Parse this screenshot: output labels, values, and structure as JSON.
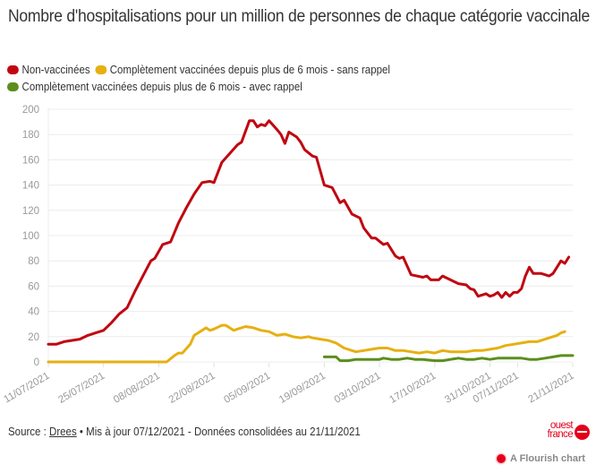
{
  "title": "Nombre d'hospitalisations pour un million de personnes de chaque catégorie vaccinale",
  "legend": [
    {
      "label": "Non-vaccinées",
      "color": "#c00711"
    },
    {
      "label": "Complètement vaccinées depuis plus de 6 mois - sans rappel",
      "color": "#e6b012"
    },
    {
      "label": "Complètement vaccinées depuis plus de 6 mois - avec rappel",
      "color": "#5b8e1c"
    }
  ],
  "footer": {
    "source_prefix": "Source : ",
    "source_link": "Drees",
    "source_suffix": " • Mis à jour 07/12/2021 - Données consolidées au 21/11/2021"
  },
  "branding": {
    "logo_line1": "ouest",
    "logo_line2": "france",
    "flourish_label": "A Flourish chart"
  },
  "chart_data": {
    "type": "line",
    "title": "Nombre d'hospitalisations pour un million de personnes de chaque catégorie vaccinale",
    "xlabel": "",
    "ylabel": "",
    "ylim": [
      0,
      200
    ],
    "yticks": [
      0,
      20,
      40,
      60,
      80,
      100,
      120,
      140,
      160,
      180,
      200
    ],
    "x_start": "2021-07-11",
    "x_end": "2021-11-21",
    "xticks": [
      {
        "date": "2021-07-11",
        "label": "11/07/2021"
      },
      {
        "date": "2021-07-25",
        "label": "25/07/2021"
      },
      {
        "date": "2021-08-08",
        "label": "08/08/2021"
      },
      {
        "date": "2021-08-22",
        "label": "22/08/2021"
      },
      {
        "date": "2021-09-05",
        "label": "05/09/2021"
      },
      {
        "date": "2021-09-19",
        "label": "19/09/2021"
      },
      {
        "date": "2021-10-03",
        "label": "03/10/2021"
      },
      {
        "date": "2021-10-17",
        "label": "17/10/2021"
      },
      {
        "date": "2021-10-31",
        "label": "31/10/2021"
      },
      {
        "date": "2021-11-07",
        "label": "07/11/2021"
      },
      {
        "date": "2021-11-21",
        "label": "21/11/2021"
      }
    ],
    "grid": true,
    "legend_position": "top-left",
    "series": [
      {
        "name": "Non-vaccinées",
        "color": "#c00711",
        "points": [
          [
            "2021-07-11",
            14
          ],
          [
            "2021-07-13",
            14
          ],
          [
            "2021-07-15",
            16
          ],
          [
            "2021-07-17",
            17
          ],
          [
            "2021-07-19",
            18
          ],
          [
            "2021-07-21",
            21
          ],
          [
            "2021-07-23",
            23
          ],
          [
            "2021-07-25",
            25
          ],
          [
            "2021-07-27",
            31
          ],
          [
            "2021-07-29",
            38
          ],
          [
            "2021-07-31",
            43
          ],
          [
            "2021-08-02",
            56
          ],
          [
            "2021-08-04",
            68
          ],
          [
            "2021-08-06",
            80
          ],
          [
            "2021-08-07",
            82
          ],
          [
            "2021-08-09",
            93
          ],
          [
            "2021-08-11",
            95
          ],
          [
            "2021-08-13",
            110
          ],
          [
            "2021-08-15",
            122
          ],
          [
            "2021-08-17",
            133
          ],
          [
            "2021-08-19",
            142
          ],
          [
            "2021-08-21",
            143
          ],
          [
            "2021-08-22",
            142
          ],
          [
            "2021-08-24",
            158
          ],
          [
            "2021-08-26",
            165
          ],
          [
            "2021-08-28",
            172
          ],
          [
            "2021-08-29",
            174
          ],
          [
            "2021-08-31",
            191
          ],
          [
            "2021-09-01",
            191
          ],
          [
            "2021-09-02",
            186
          ],
          [
            "2021-09-03",
            188
          ],
          [
            "2021-09-04",
            187
          ],
          [
            "2021-09-05",
            191
          ],
          [
            "2021-09-07",
            184
          ],
          [
            "2021-09-08",
            180
          ],
          [
            "2021-09-09",
            173
          ],
          [
            "2021-09-10",
            182
          ],
          [
            "2021-09-12",
            178
          ],
          [
            "2021-09-13",
            174
          ],
          [
            "2021-09-14",
            168
          ],
          [
            "2021-09-16",
            163
          ],
          [
            "2021-09-17",
            162
          ],
          [
            "2021-09-19",
            140
          ],
          [
            "2021-09-21",
            138
          ],
          [
            "2021-09-23",
            126
          ],
          [
            "2021-09-24",
            128
          ],
          [
            "2021-09-26",
            117
          ],
          [
            "2021-09-28",
            114
          ],
          [
            "2021-09-29",
            106
          ],
          [
            "2021-10-01",
            98
          ],
          [
            "2021-10-02",
            98
          ],
          [
            "2021-10-04",
            93
          ],
          [
            "2021-10-05",
            94
          ],
          [
            "2021-10-07",
            84
          ],
          [
            "2021-10-08",
            82
          ],
          [
            "2021-10-09",
            83
          ],
          [
            "2021-10-11",
            69
          ],
          [
            "2021-10-14",
            67
          ],
          [
            "2021-10-15",
            68
          ],
          [
            "2021-10-16",
            65
          ],
          [
            "2021-10-18",
            65
          ],
          [
            "2021-10-19",
            68
          ],
          [
            "2021-10-21",
            65
          ],
          [
            "2021-10-23",
            62
          ],
          [
            "2021-10-25",
            61
          ],
          [
            "2021-10-26",
            58
          ],
          [
            "2021-10-27",
            57
          ],
          [
            "2021-10-28",
            52
          ],
          [
            "2021-10-30",
            54
          ],
          [
            "2021-10-31",
            52
          ],
          [
            "2021-11-01",
            53
          ],
          [
            "2021-11-02",
            55
          ],
          [
            "2021-11-03",
            51
          ],
          [
            "2021-11-04",
            55
          ],
          [
            "2021-11-05",
            52
          ],
          [
            "2021-11-06",
            55
          ],
          [
            "2021-11-07",
            55
          ],
          [
            "2021-11-08",
            58
          ],
          [
            "2021-11-09",
            68
          ],
          [
            "2021-11-10",
            75
          ],
          [
            "2021-11-11",
            70
          ],
          [
            "2021-11-13",
            70
          ],
          [
            "2021-11-15",
            68
          ],
          [
            "2021-11-16",
            70
          ],
          [
            "2021-11-17",
            75
          ],
          [
            "2021-11-18",
            80
          ],
          [
            "2021-11-19",
            78
          ],
          [
            "2021-11-20",
            83
          ]
        ]
      },
      {
        "name": "Complètement vaccinées depuis plus de 6 mois - sans rappel",
        "color": "#e6b012",
        "points": [
          [
            "2021-07-11",
            0
          ],
          [
            "2021-07-25",
            0
          ],
          [
            "2021-08-08",
            0
          ],
          [
            "2021-08-10",
            0
          ],
          [
            "2021-08-12",
            5
          ],
          [
            "2021-08-13",
            7
          ],
          [
            "2021-08-14",
            7
          ],
          [
            "2021-08-16",
            14
          ],
          [
            "2021-08-17",
            21
          ],
          [
            "2021-08-19",
            25
          ],
          [
            "2021-08-20",
            27
          ],
          [
            "2021-08-21",
            25
          ],
          [
            "2021-08-22",
            26
          ],
          [
            "2021-08-24",
            29
          ],
          [
            "2021-08-25",
            29
          ],
          [
            "2021-08-27",
            25
          ],
          [
            "2021-08-28",
            26
          ],
          [
            "2021-08-30",
            28
          ],
          [
            "2021-09-01",
            27
          ],
          [
            "2021-09-03",
            25
          ],
          [
            "2021-09-05",
            24
          ],
          [
            "2021-09-07",
            21
          ],
          [
            "2021-09-09",
            22
          ],
          [
            "2021-09-11",
            20
          ],
          [
            "2021-09-13",
            19
          ],
          [
            "2021-09-15",
            20
          ],
          [
            "2021-09-16",
            19
          ],
          [
            "2021-09-18",
            18
          ],
          [
            "2021-09-20",
            17
          ],
          [
            "2021-09-22",
            15
          ],
          [
            "2021-09-24",
            11
          ],
          [
            "2021-09-26",
            9
          ],
          [
            "2021-09-27",
            8
          ],
          [
            "2021-09-29",
            9
          ],
          [
            "2021-10-01",
            10
          ],
          [
            "2021-10-03",
            11
          ],
          [
            "2021-10-05",
            11
          ],
          [
            "2021-10-07",
            9
          ],
          [
            "2021-10-09",
            9
          ],
          [
            "2021-10-11",
            8
          ],
          [
            "2021-10-13",
            7
          ],
          [
            "2021-10-15",
            8
          ],
          [
            "2021-10-17",
            7
          ],
          [
            "2021-10-19",
            9
          ],
          [
            "2021-10-21",
            8
          ],
          [
            "2021-10-23",
            8
          ],
          [
            "2021-10-25",
            8
          ],
          [
            "2021-10-27",
            9
          ],
          [
            "2021-10-29",
            9
          ],
          [
            "2021-10-31",
            10
          ],
          [
            "2021-11-02",
            11
          ],
          [
            "2021-11-04",
            13
          ],
          [
            "2021-11-06",
            14
          ],
          [
            "2021-11-08",
            15
          ],
          [
            "2021-11-10",
            16
          ],
          [
            "2021-11-12",
            16
          ],
          [
            "2021-11-14",
            18
          ],
          [
            "2021-11-16",
            20
          ],
          [
            "2021-11-17",
            21
          ],
          [
            "2021-11-18",
            23
          ],
          [
            "2021-11-19",
            24
          ]
        ]
      },
      {
        "name": "Complètement vaccinées depuis plus de 6 mois - avec rappel",
        "color": "#5b8e1c",
        "points": [
          [
            "2021-09-19",
            4
          ],
          [
            "2021-09-22",
            4
          ],
          [
            "2021-09-23",
            1
          ],
          [
            "2021-09-25",
            1
          ],
          [
            "2021-09-27",
            2
          ],
          [
            "2021-09-29",
            2
          ],
          [
            "2021-10-01",
            2
          ],
          [
            "2021-10-03",
            2
          ],
          [
            "2021-10-04",
            3
          ],
          [
            "2021-10-06",
            2
          ],
          [
            "2021-10-08",
            2
          ],
          [
            "2021-10-10",
            3
          ],
          [
            "2021-10-12",
            2
          ],
          [
            "2021-10-14",
            2
          ],
          [
            "2021-10-17",
            1
          ],
          [
            "2021-10-19",
            1
          ],
          [
            "2021-10-21",
            2
          ],
          [
            "2021-10-23",
            3
          ],
          [
            "2021-10-25",
            2
          ],
          [
            "2021-10-27",
            2
          ],
          [
            "2021-10-29",
            3
          ],
          [
            "2021-10-31",
            2
          ],
          [
            "2021-11-02",
            3
          ],
          [
            "2021-11-04",
            3
          ],
          [
            "2021-11-06",
            3
          ],
          [
            "2021-11-08",
            3
          ],
          [
            "2021-11-10",
            2
          ],
          [
            "2021-11-12",
            2
          ],
          [
            "2021-11-14",
            3
          ],
          [
            "2021-11-16",
            4
          ],
          [
            "2021-11-18",
            5
          ],
          [
            "2021-11-21",
            5
          ]
        ]
      }
    ]
  }
}
